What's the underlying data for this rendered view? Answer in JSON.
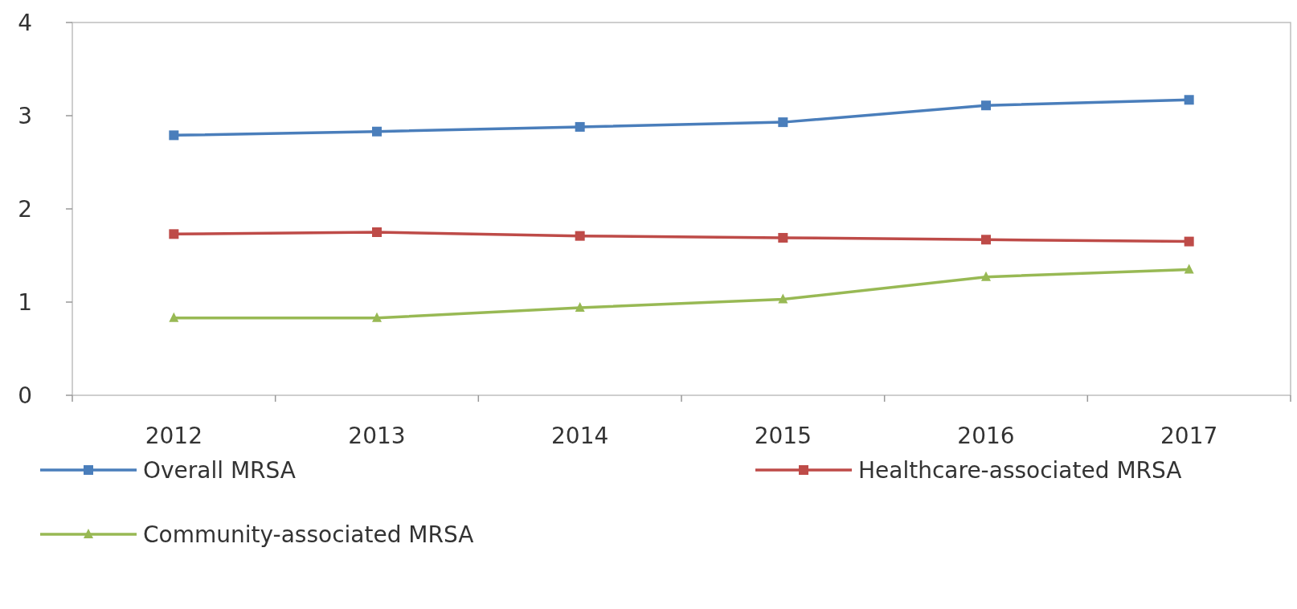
{
  "chart_data": {
    "type": "line",
    "categories": [
      "2012",
      "2013",
      "2014",
      "2015",
      "2016",
      "2017"
    ],
    "series": [
      {
        "name": "Overall MRSA",
        "color": "#4a7ebb",
        "values": [
          2.79,
          2.83,
          2.88,
          2.93,
          3.11,
          3.17
        ],
        "marker": "square"
      },
      {
        "name": "Healthcare-associated MRSA",
        "color": "#be4b48",
        "values": [
          1.73,
          1.75,
          1.71,
          1.69,
          1.67,
          1.65
        ],
        "marker": "square"
      },
      {
        "name": "Community-associated MRSA",
        "color": "#98b954",
        "values": [
          0.83,
          0.83,
          0.94,
          1.03,
          1.27,
          1.35
        ],
        "marker": "triangle"
      }
    ],
    "ylim": [
      0,
      4
    ],
    "yticks": [
      0,
      1,
      2,
      3,
      4
    ],
    "grid": false,
    "legend": "bottom",
    "line_style": "solid"
  }
}
